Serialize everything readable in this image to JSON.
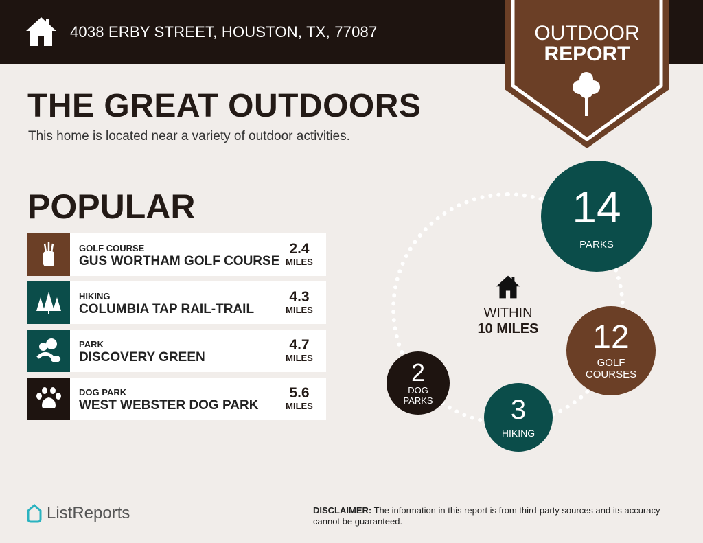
{
  "header": {
    "address": "4038 ERBY STREET, HOUSTON, TX, 77087",
    "icon": "house-icon"
  },
  "banner": {
    "line1": "OUTDOOR",
    "line2": "REPORT",
    "icon": "tree-icon"
  },
  "title": "THE GREAT OUTDOORS",
  "subtitle": "This home is located near a variety of outdoor activities.",
  "popular": {
    "heading": "POPULAR",
    "items": [
      {
        "category": "GOLF COURSE",
        "name": "GUS WORTHAM GOLF COURSE",
        "distance": "2.4",
        "unit": "MILES",
        "icon": "golf-bag-icon",
        "color": "#6b3f26"
      },
      {
        "category": "HIKING",
        "name": "COLUMBIA TAP RAIL-TRAIL",
        "distance": "4.3",
        "unit": "MILES",
        "icon": "pine-trees-icon",
        "color": "#0b4d4a"
      },
      {
        "category": "PARK",
        "name": "DISCOVERY GREEN",
        "distance": "4.7",
        "unit": "MILES",
        "icon": "park-icon",
        "color": "#0b4d4a"
      },
      {
        "category": "DOG PARK",
        "name": "WEST WEBSTER DOG PARK",
        "distance": "5.6",
        "unit": "MILES",
        "icon": "paw-icon",
        "color": "#1e1410"
      }
    ]
  },
  "summary": {
    "within1": "WITHIN",
    "within2": "10 MILES",
    "stats": [
      {
        "count": "14",
        "label": "PARKS",
        "color": "#0b4d4a"
      },
      {
        "count": "12",
        "label": "GOLF COURSES",
        "color": "#6b3f26"
      },
      {
        "count": "3",
        "label": "HIKING",
        "color": "#0b4d4a"
      },
      {
        "count": "2",
        "label": "DOG PARKS",
        "color": "#1e1410"
      }
    ]
  },
  "footer": {
    "logo": "ListReports",
    "disclaimer_label": "DISCLAIMER:",
    "disclaimer": " The information in this report is from third-party sources and its accuracy cannot be guaranteed."
  }
}
